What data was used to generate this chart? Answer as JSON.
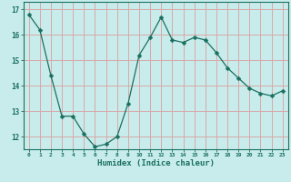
{
  "x": [
    0,
    1,
    2,
    3,
    4,
    5,
    6,
    7,
    8,
    9,
    10,
    11,
    12,
    13,
    14,
    15,
    16,
    17,
    18,
    19,
    20,
    21,
    22,
    23
  ],
  "y": [
    16.8,
    16.2,
    14.4,
    12.8,
    12.8,
    12.1,
    11.6,
    11.7,
    12.0,
    13.3,
    15.2,
    15.9,
    16.7,
    15.8,
    15.7,
    15.9,
    15.8,
    15.3,
    14.7,
    14.3,
    13.9,
    13.7,
    13.6,
    13.8
  ],
  "line_color": "#1a7060",
  "marker": "D",
  "marker_size": 2.5,
  "bg_color": "#c8eceb",
  "grid_color": "#d8a8a8",
  "xlabel": "Humidex (Indice chaleur)",
  "xlabel_color": "#1a7060",
  "tick_color": "#1a7060",
  "ylim": [
    11.5,
    17.3
  ],
  "yticks": [
    12,
    13,
    14,
    15,
    16,
    17
  ],
  "xticks": [
    0,
    1,
    2,
    3,
    4,
    5,
    6,
    7,
    8,
    9,
    10,
    11,
    12,
    13,
    14,
    15,
    16,
    17,
    18,
    19,
    20,
    21,
    22,
    23
  ]
}
